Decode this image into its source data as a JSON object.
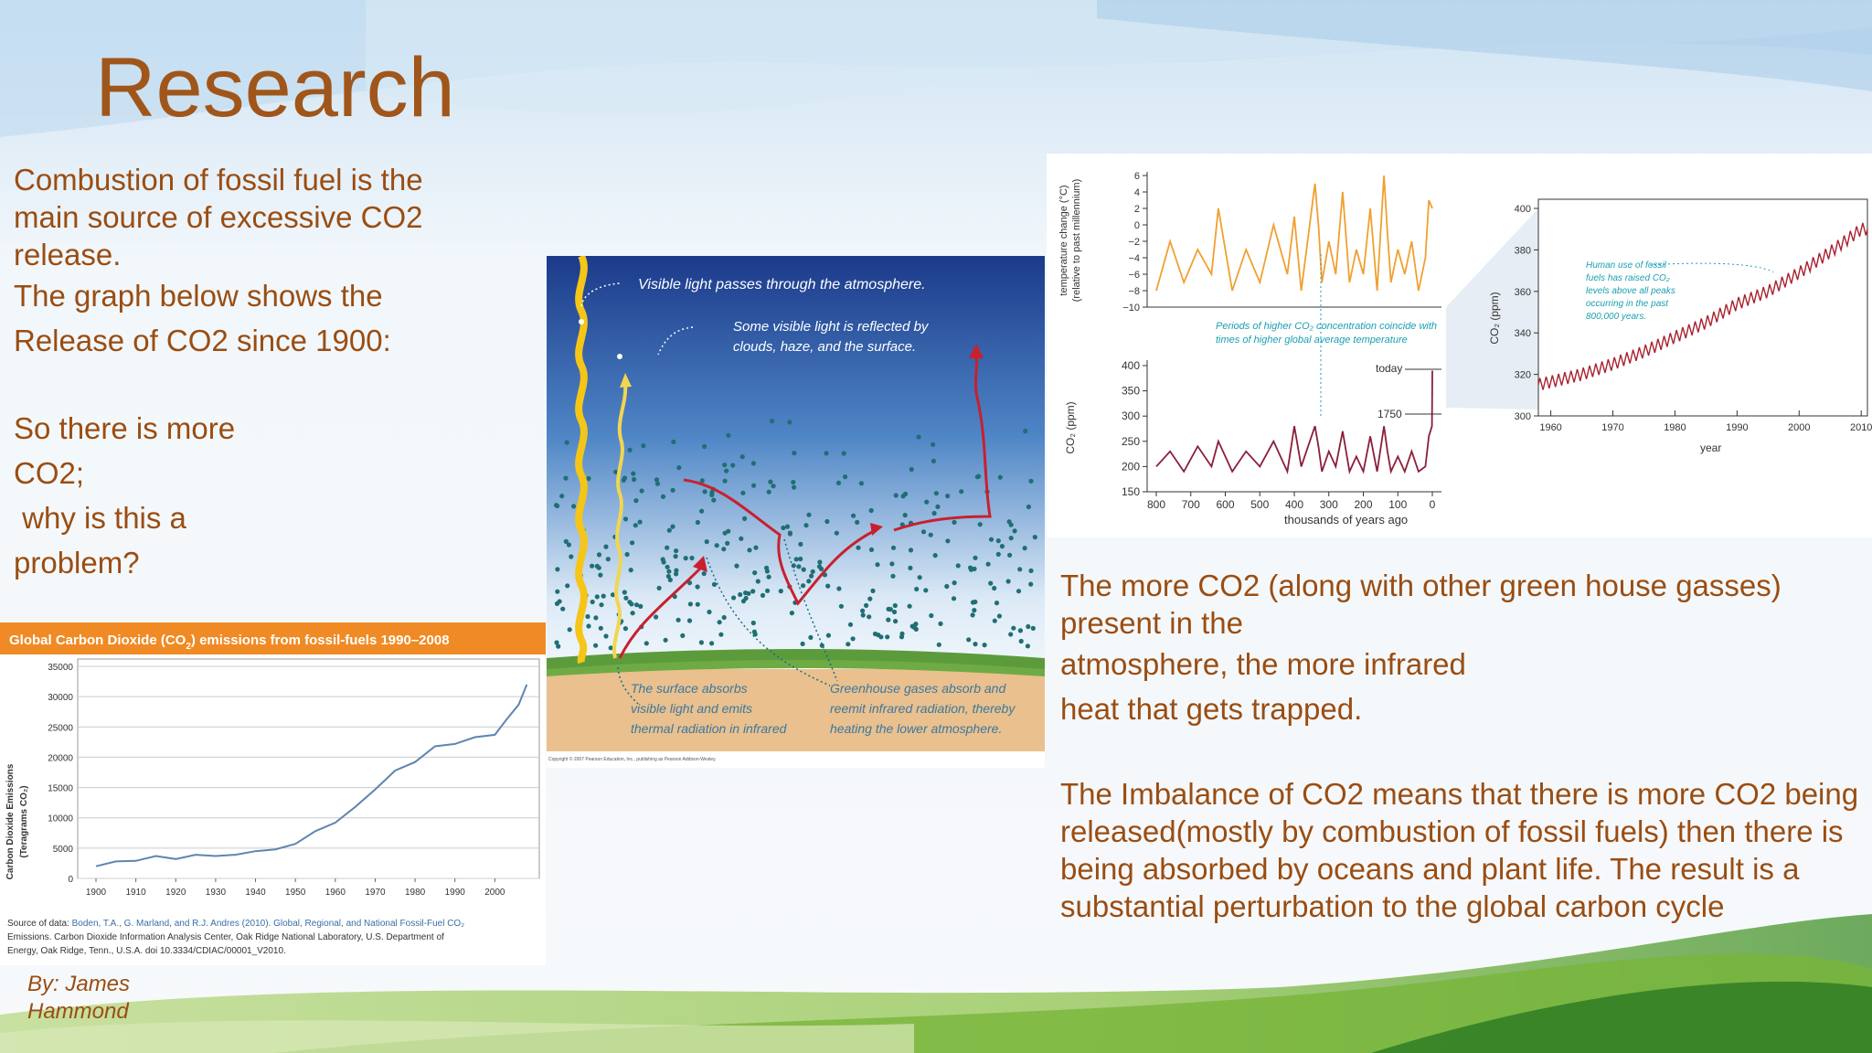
{
  "slide": {
    "title": "Research",
    "left_text": {
      "p1": "Combustion of fossil fuel is the main source of excessive CO2 release.",
      "p2": "The graph below shows the",
      "p3": "Release of CO2 since 1900:",
      "p4": "So there is more",
      "p5": "CO2;",
      "p6": " why is this a",
      "p7": "problem?"
    },
    "right_text": {
      "p1": "The more CO2 (along with other green house gasses) present in the",
      "p2": "atmosphere, the more infrared",
      "p3": "heat that gets trapped.",
      "p4": "The Imbalance of CO2 means that there is more CO2 being released(mostly by combustion of fossil fuels) then there is being absorbed by oceans and plant life. The result is a substantial perturbation to the global carbon cycle"
    },
    "author_line1": "By: James",
    "author_line2": "Hammond"
  },
  "colors": {
    "text_brown": "#9a4d12",
    "title_brown": "#a0561a",
    "chart_header_orange": "#f08a24",
    "co2_line_blue": "#5d86b0",
    "temp_orange": "#f0a030",
    "co2_dark_red": "#8b1f3a",
    "mauna_red": "#a82230",
    "annotation_teal": "#1a9fb0"
  },
  "co2_emissions_chart": {
    "header": "Global Carbon Dioxide (CO",
    "header_sub": "2",
    "header_rest": ") emissions from fossil-fuels 1990–2008",
    "ylabel_line1": "Carbon Dioxide Emissions",
    "ylabel_line2": "(Teragrams CO₂)",
    "source_prefix": "Source of data: ",
    "source_line1": "Boden, T.A., G. Marland, and R.J. Andres (2010). Global, Regional, and National Fossil-Fuel CO₂",
    "source_line2": "Emissions. Carbon Dioxide Information Analysis Center, Oak Ridge National Laboratory, U.S. Department of",
    "source_line3": "Energy, Oak Ridge, Tenn., U.S.A. doi 10.3334/CDIAC/00001_V2010."
  },
  "greenhouse_diagram": {
    "label1": "Visible light passes through the atmosphere.",
    "label2a": "Some visible light is reflected by",
    "label2b": "clouds, haze, and the surface.",
    "label3a": "The surface absorbs",
    "label3b": "visible light and emits",
    "label3c": "thermal radiation in infrared",
    "label4a": "Greenhouse gases absorb and",
    "label4b": "reemit infrared radiation, thereby",
    "label4c": "heating the lower atmosphere.",
    "copyright": "Copyright © 2007 Pearson Education, Inc., publishing as Pearson Addison-Wesley."
  },
  "ice_core_figure": {
    "temp_ylabel1": "temperature change (°C)",
    "temp_ylabel2": "(relative to past millennium)",
    "co2_ylabel": "CO₂ (ppm)",
    "xlabel": "thousands of years ago",
    "note_a": "Periods of higher CO₂ concentration coincide with",
    "note_b": "times of higher global average temperature",
    "today_label": "today",
    "y1750_label": "1750",
    "mauna_ylabel": "CO₂ (ppm)",
    "mauna_xlabel": "year",
    "mauna_note1": "Human use of fossil",
    "mauna_note2": "fuels has raised CO₂",
    "mauna_note3": "levels above all peaks",
    "mauna_note4": "occurring in the past",
    "mauna_note5": "800,000 years."
  },
  "chart_data": [
    {
      "type": "line",
      "title": "Global Carbon Dioxide (CO2) emissions from fossil-fuels 1990–2008",
      "xlabel": "",
      "ylabel": "Carbon Dioxide Emissions (Teragrams CO2)",
      "x": [
        1900,
        1905,
        1910,
        1915,
        1920,
        1925,
        1930,
        1935,
        1940,
        1945,
        1950,
        1955,
        1960,
        1965,
        1970,
        1975,
        1980,
        1985,
        1990,
        1995,
        2000,
        2003,
        2006,
        2008
      ],
      "values": [
        2000,
        2500,
        3200,
        3400,
        3500,
        3600,
        4000,
        3600,
        4800,
        4500,
        6000,
        7500,
        9500,
        11500,
        15000,
        17500,
        19500,
        21500,
        22500,
        23000,
        24000,
        26000,
        29000,
        32000
      ],
      "xticks": [
        1900,
        1910,
        1920,
        1930,
        1940,
        1950,
        1960,
        1970,
        1980,
        1990,
        2000
      ],
      "yticks": [
        0,
        5000,
        10000,
        15000,
        20000,
        25000,
        30000,
        35000
      ],
      "xlim": [
        1900,
        2010
      ],
      "ylim": [
        0,
        35000
      ],
      "grid": true
    },
    {
      "type": "line",
      "title": "",
      "xlabel": "thousands of years ago",
      "ylabel": "temperature change (°C) (relative to past millennium)",
      "x": [
        800,
        760,
        720,
        680,
        640,
        620,
        580,
        540,
        500,
        460,
        420,
        400,
        380,
        340,
        330,
        320,
        300,
        280,
        260,
        240,
        220,
        200,
        180,
        160,
        140,
        130,
        120,
        100,
        80,
        60,
        40,
        20,
        10,
        0
      ],
      "values": [
        -8,
        -2,
        -7,
        -3,
        -6,
        2,
        -8,
        -3,
        -7,
        0,
        -6,
        1,
        -8,
        5,
        0,
        -7,
        -2,
        -6,
        4,
        -7,
        -3,
        -6,
        2,
        -8,
        6,
        -1,
        -7,
        -3,
        -6,
        -2,
        -8,
        -4,
        3,
        2
      ],
      "xticks": [
        800,
        700,
        600,
        500,
        400,
        300,
        200,
        100,
        0
      ],
      "yticks": [
        -10,
        -8,
        -6,
        -4,
        -2,
        0,
        2,
        4,
        6
      ],
      "xlim": [
        800,
        0
      ],
      "ylim": [
        -10,
        6
      ]
    },
    {
      "type": "line",
      "title": "",
      "xlabel": "thousands of years ago",
      "ylabel": "CO2 (ppm)",
      "x": [
        800,
        760,
        720,
        680,
        640,
        620,
        580,
        540,
        500,
        460,
        420,
        400,
        380,
        340,
        330,
        320,
        300,
        280,
        260,
        240,
        220,
        200,
        180,
        160,
        140,
        130,
        120,
        100,
        80,
        60,
        40,
        20,
        10,
        1,
        0
      ],
      "values": [
        200,
        230,
        190,
        240,
        200,
        250,
        190,
        230,
        200,
        250,
        190,
        280,
        200,
        280,
        240,
        190,
        230,
        200,
        270,
        190,
        220,
        190,
        260,
        190,
        280,
        230,
        190,
        220,
        190,
        230,
        190,
        200,
        260,
        280,
        390
      ],
      "xticks": [
        800,
        700,
        600,
        500,
        400,
        300,
        200,
        100,
        0
      ],
      "yticks": [
        150,
        200,
        250,
        300,
        350,
        400
      ],
      "xlim": [
        800,
        0
      ],
      "ylim": [
        150,
        400
      ],
      "annotations": [
        "today",
        "1750"
      ]
    },
    {
      "type": "line",
      "title": "",
      "xlabel": "year",
      "ylabel": "CO2 (ppm)",
      "x": [
        1958,
        1965,
        1970,
        1975,
        1980,
        1985,
        1990,
        1995,
        2000,
        2005,
        2010
      ],
      "values": [
        315,
        320,
        325,
        331,
        338,
        345,
        354,
        360,
        369,
        379,
        390
      ],
      "xticks": [
        1960,
        1970,
        1980,
        1990,
        2000,
        2010
      ],
      "yticks": [
        300,
        320,
        340,
        360,
        380,
        400
      ],
      "xlim": [
        1958,
        2011
      ],
      "ylim": [
        300,
        400
      ]
    }
  ]
}
